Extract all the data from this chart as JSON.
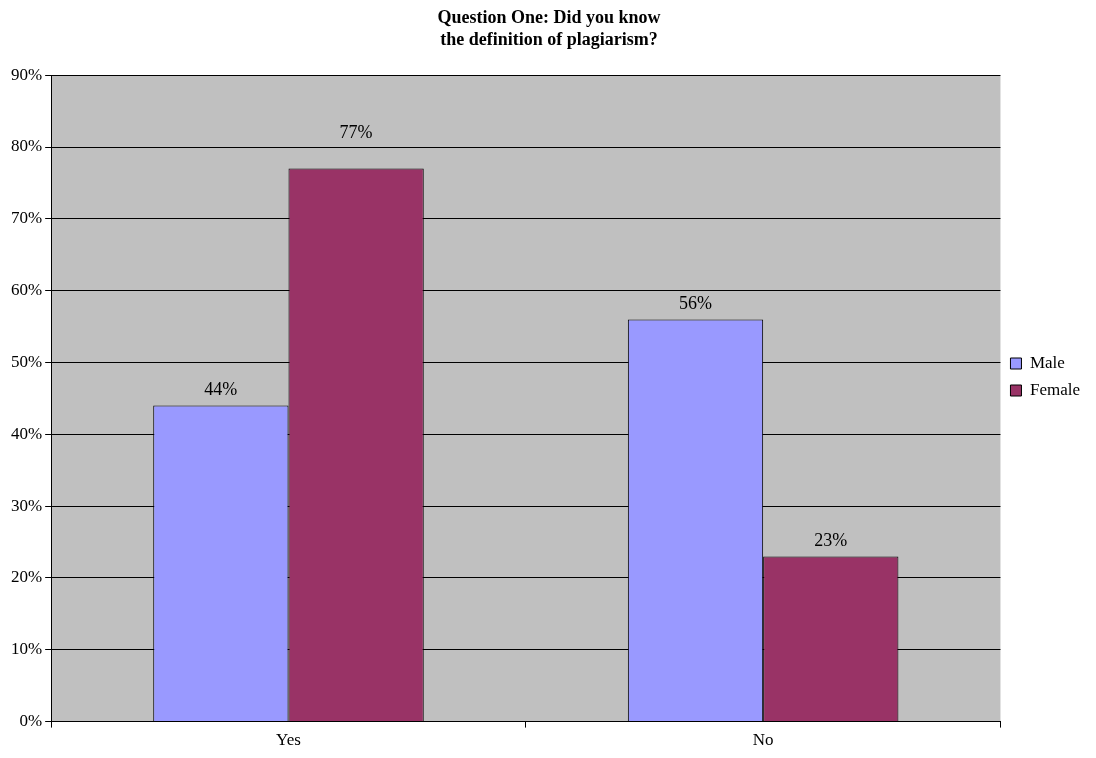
{
  "chart_data": {
    "type": "bar",
    "title": "Question One: Did you know\nthe definition of plagiarism?",
    "categories": [
      "Yes",
      "No"
    ],
    "series": [
      {
        "name": "Male",
        "color": "#9999ff",
        "values": [
          44,
          56
        ],
        "value_labels": [
          "44%",
          "56%"
        ]
      },
      {
        "name": "Female",
        "color": "#993366",
        "values": [
          77,
          23
        ],
        "value_labels": [
          "77%",
          "23%"
        ]
      }
    ],
    "ylim": [
      0,
      90
    ],
    "yticks": [
      {
        "value": 0,
        "label": "0%"
      },
      {
        "value": 10,
        "label": "10%"
      },
      {
        "value": 20,
        "label": "20%"
      },
      {
        "value": 30,
        "label": "30%"
      },
      {
        "value": 40,
        "label": "40%"
      },
      {
        "value": 50,
        "label": "50%"
      },
      {
        "value": 60,
        "label": "60%"
      },
      {
        "value": 70,
        "label": "70%"
      },
      {
        "value": 80,
        "label": "80%"
      },
      {
        "value": 90,
        "label": "90%"
      }
    ],
    "grid": "y",
    "legend": "right"
  }
}
